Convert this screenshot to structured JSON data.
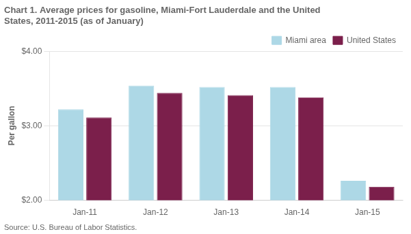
{
  "chart_data": {
    "type": "bar",
    "title": [
      "Chart 1. Average prices for gasoline, Miami-Fort Lauderdale and the United",
      "States, 2011-2015 (as of January)"
    ],
    "ylabel": "Per gallon",
    "annotations": [
      "Source: U.S. Bureau of Labor Statistics."
    ],
    "categories": [
      "Jan-11",
      "Jan-12",
      "Jan-13",
      "Jan-14",
      "Jan-15"
    ],
    "series": [
      {
        "name": "Miami area",
        "color": "#ADD8E6",
        "values": [
          3.22,
          3.54,
          3.52,
          3.52,
          2.26
        ]
      },
      {
        "name": "United States",
        "color": "#7B1F4B",
        "values": [
          3.11,
          3.44,
          3.41,
          3.38,
          2.18
        ]
      }
    ],
    "ylim": [
      2.0,
      4.0
    ],
    "yticks": [
      {
        "value": 2.0,
        "label": "$2.00"
      },
      {
        "value": 3.0,
        "label": "$3.00"
      },
      {
        "value": 4.0,
        "label": "$4.00"
      }
    ],
    "grid": true,
    "legend": "upper right"
  }
}
